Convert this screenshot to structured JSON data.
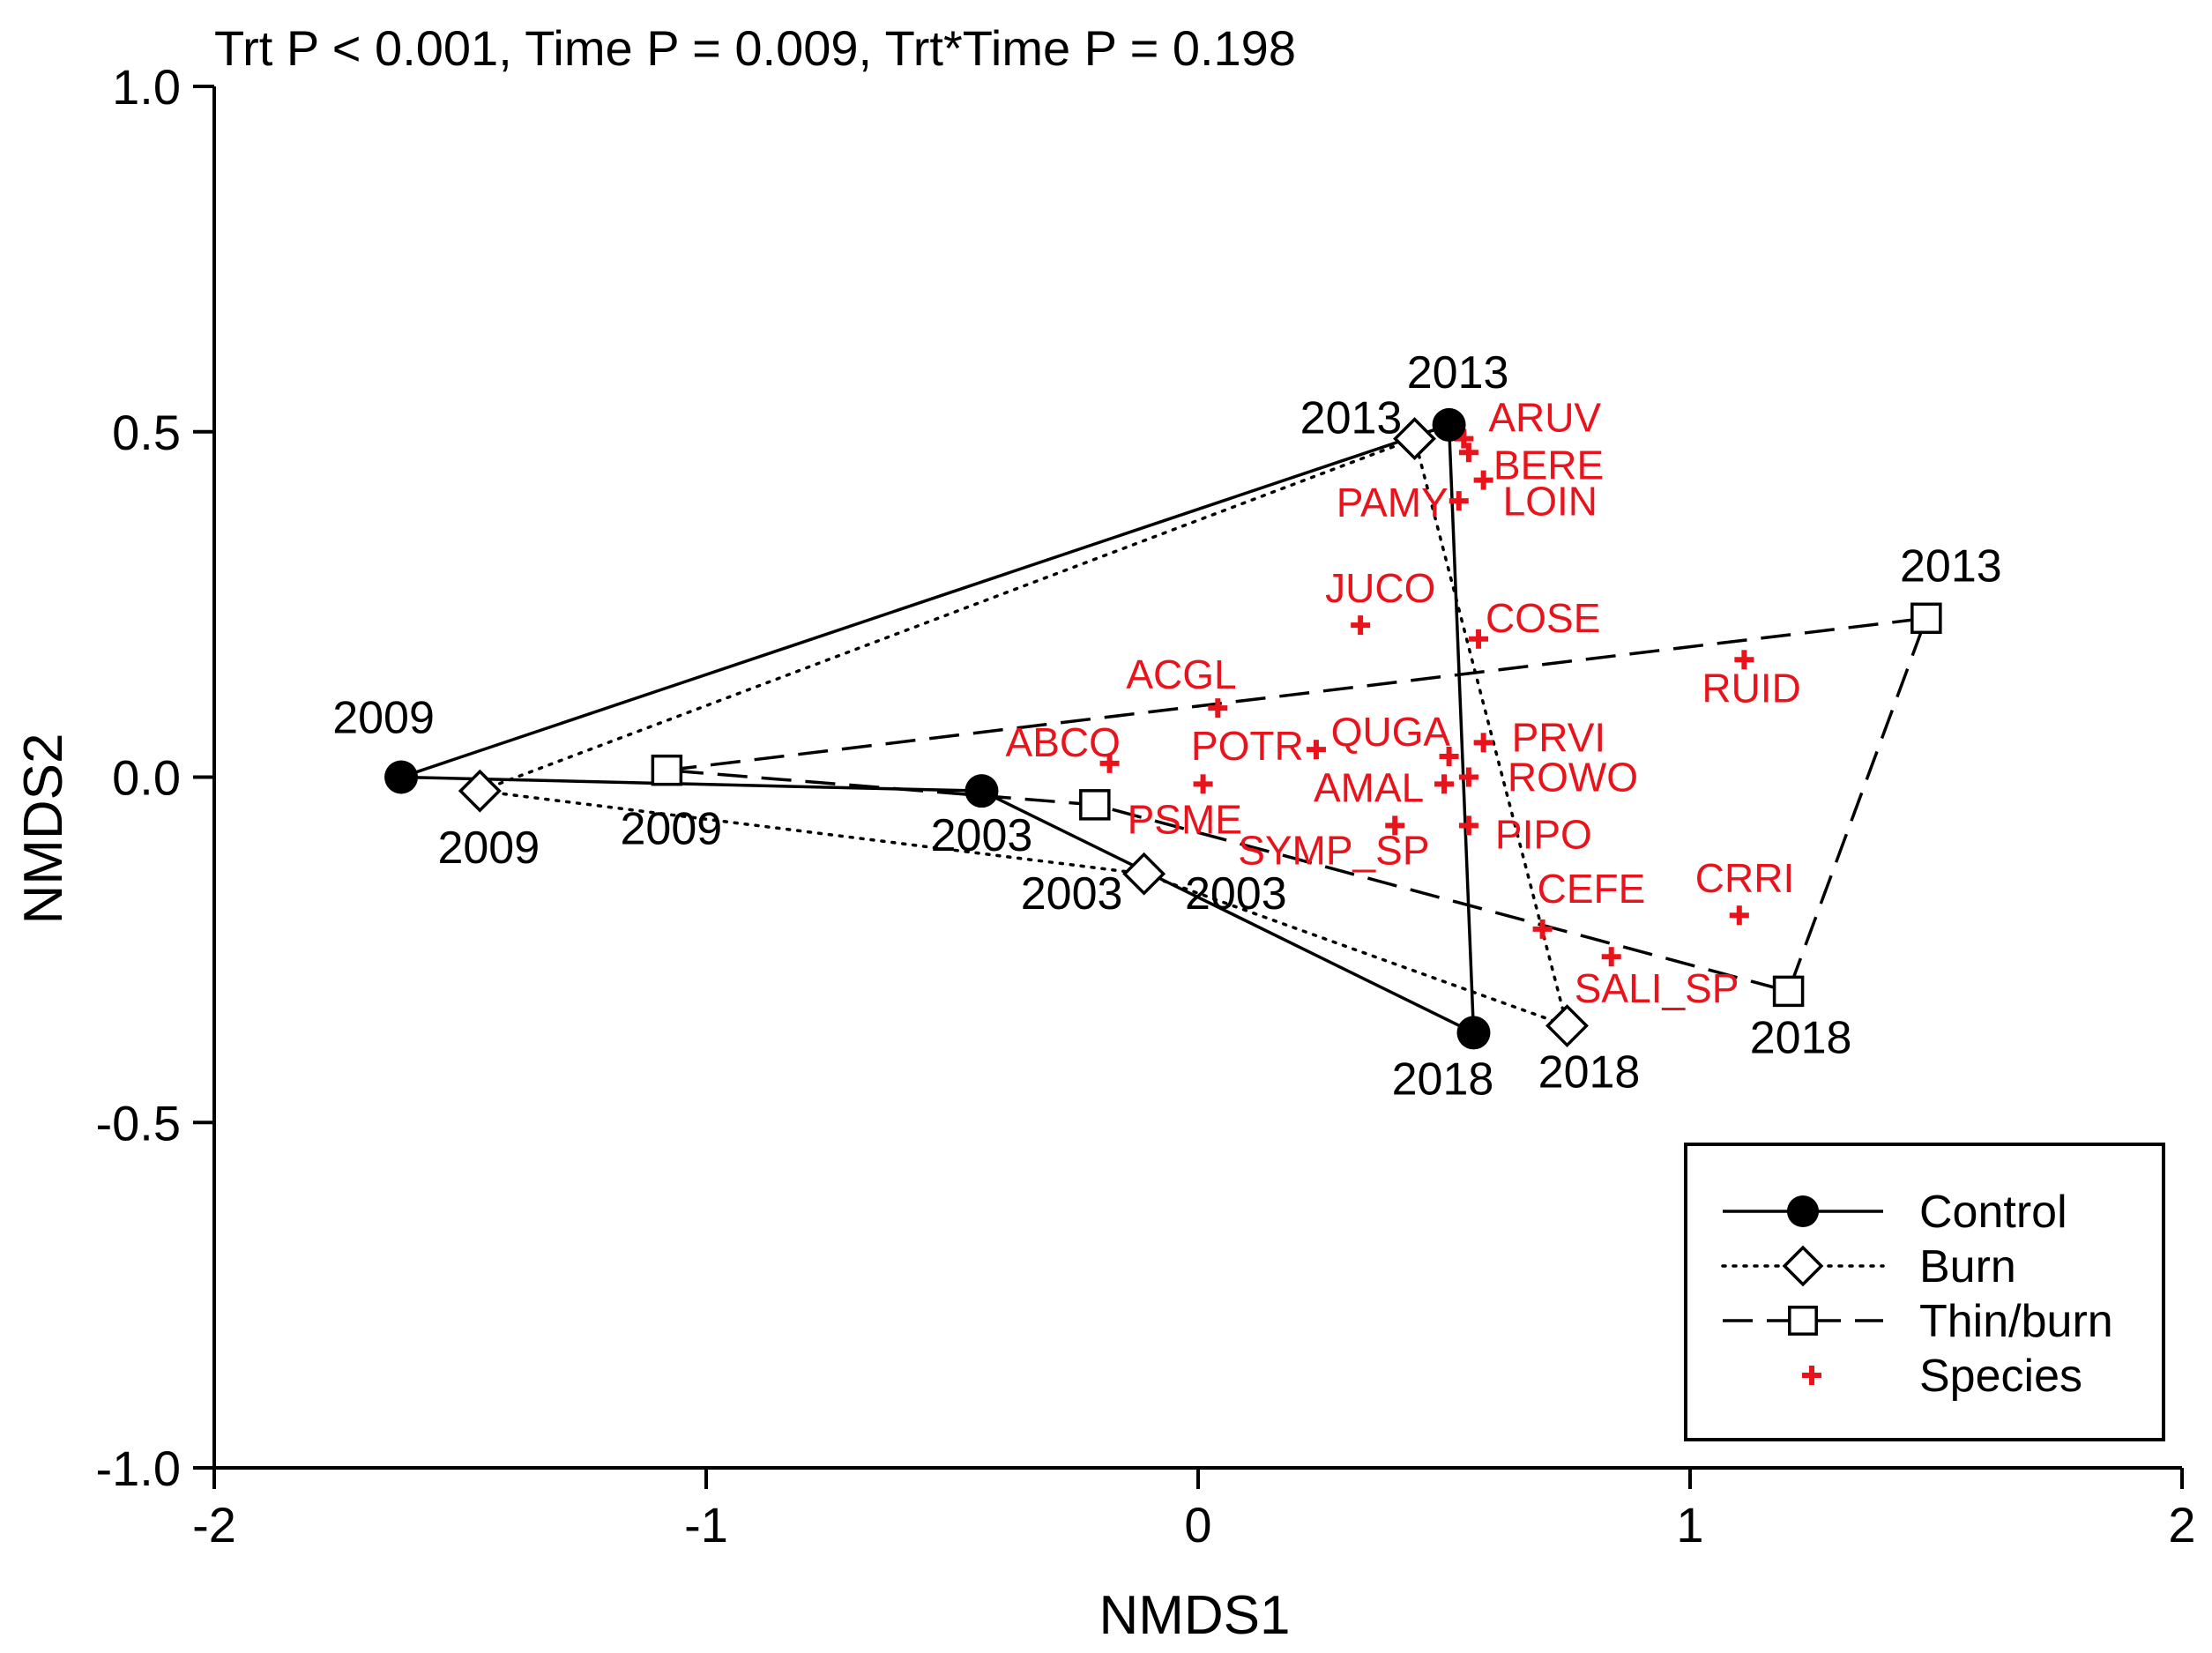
{
  "chart_data": {
    "type": "scatter",
    "title": "Trt P < 0.001, Time P = 0.009, Trt*Time P = 0.198",
    "xlabel": "NMDS1",
    "ylabel": "NMDS2",
    "xlim": [
      -2,
      2
    ],
    "ylim": [
      -1.0,
      1.0
    ],
    "xticks": [
      "-2",
      "-1",
      "0",
      "1",
      "2"
    ],
    "yticks": [
      "-1.0",
      "-0.5",
      "0.0",
      "0.5",
      "1.0"
    ],
    "colors": {
      "species": "#e8131b",
      "treatment": "#000000"
    },
    "series": [
      {
        "name": "Control",
        "marker": "filled-circle",
        "line": "solid",
        "points": [
          {
            "label": "2009",
            "x": -1.62,
            "y": 0.0
          },
          {
            "label": "2013",
            "x": 0.51,
            "y": 0.51
          },
          {
            "label": "2018",
            "x": 0.56,
            "y": -0.37
          },
          {
            "label": "2003",
            "x": -0.44,
            "y": -0.02
          }
        ]
      },
      {
        "name": "Burn",
        "marker": "open-diamond",
        "line": "dotted",
        "points": [
          {
            "label": "2009",
            "x": -1.46,
            "y": -0.02
          },
          {
            "label": "2013",
            "x": 0.44,
            "y": 0.49
          },
          {
            "label": "2018",
            "x": 0.75,
            "y": -0.36
          },
          {
            "label": "2003",
            "x": -0.11,
            "y": -0.14
          }
        ]
      },
      {
        "name": "Thin/burn",
        "marker": "open-square",
        "line": "dashed",
        "points": [
          {
            "label": "2009",
            "x": -1.08,
            "y": 0.01
          },
          {
            "label": "2013",
            "x": 1.48,
            "y": 0.23
          },
          {
            "label": "2018",
            "x": 1.2,
            "y": -0.31
          },
          {
            "label": "2003",
            "x": -0.21,
            "y": -0.04
          }
        ]
      }
    ],
    "species": [
      {
        "label": "ARUV",
        "x": 0.54,
        "y": 0.49
      },
      {
        "label": "BERE",
        "x": 0.55,
        "y": 0.47
      },
      {
        "label": "LOIN",
        "x": 0.58,
        "y": 0.43
      },
      {
        "label": "PAMY",
        "x": 0.53,
        "y": 0.4
      },
      {
        "label": "JUCO",
        "x": 0.33,
        "y": 0.22
      },
      {
        "label": "COSE",
        "x": 0.57,
        "y": 0.2
      },
      {
        "label": "RUID",
        "x": 1.11,
        "y": 0.17
      },
      {
        "label": "ACGL",
        "x": 0.04,
        "y": 0.1
      },
      {
        "label": "QUGA",
        "x": 0.51,
        "y": 0.03
      },
      {
        "label": "PRVI",
        "x": 0.58,
        "y": 0.05
      },
      {
        "label": "POTR",
        "x": 0.24,
        "y": 0.04
      },
      {
        "label": "ABCO",
        "x": -0.18,
        "y": 0.02
      },
      {
        "label": "AMAL",
        "x": 0.5,
        "y": -0.01
      },
      {
        "label": "ROWO",
        "x": 0.55,
        "y": 0.0
      },
      {
        "label": "PSME",
        "x": 0.01,
        "y": -0.01
      },
      {
        "label": "PIPO",
        "x": 0.55,
        "y": -0.07
      },
      {
        "label": "SYMP_SP",
        "x": 0.4,
        "y": -0.07
      },
      {
        "label": "CEFE",
        "x": 0.7,
        "y": -0.22
      },
      {
        "label": "CRRI",
        "x": 1.1,
        "y": -0.2
      },
      {
        "label": "SALI_SP",
        "x": 0.84,
        "y": -0.26
      }
    ],
    "legend": {
      "position": "bottom-right",
      "entries": [
        "Control",
        "Burn",
        "Thin/burn",
        "Species"
      ]
    }
  }
}
